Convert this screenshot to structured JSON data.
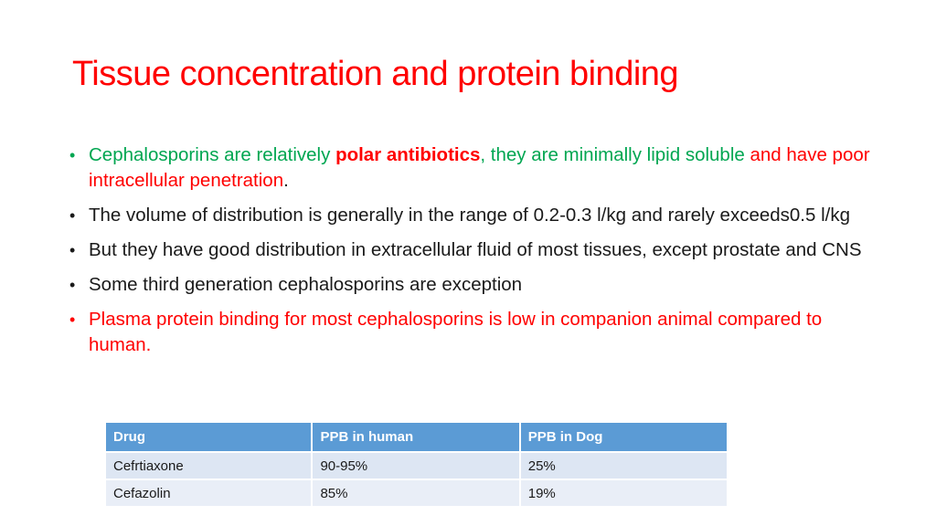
{
  "slide": {
    "title": "Tissue concentration and protein binding",
    "bullets": [
      {
        "parts": [
          {
            "text": "Cephalosporins are relatively ",
            "style": "green"
          },
          {
            "text": "polar antibiotics",
            "style": "red-bold"
          },
          {
            "text": ", they  are minimally lipid soluble ",
            "style": "green"
          },
          {
            "text": "and have poor intracellular penetration",
            "style": "red"
          },
          {
            "text": ".",
            "style": "dark"
          }
        ]
      },
      {
        "parts": [
          {
            "text": "The volume of distribution is generally in the range of 0.2-0.3 l/kg and rarely exceeds0.5 l/kg",
            "style": "dark"
          }
        ]
      },
      {
        "parts": [
          {
            "text": "But they have good distribution in extracellular fluid of most tissues, except prostate and CNS",
            "style": "dark"
          }
        ]
      },
      {
        "parts": [
          {
            "text": "Some third generation cephalosporins are exception",
            "style": "dark"
          }
        ]
      },
      {
        "parts": [
          {
            "text": "Plasma protein binding for most cephalosporins is low in companion animal compared to human.",
            "style": "red"
          }
        ],
        "bullet_color": "red"
      }
    ],
    "table": {
      "headers": [
        "Drug",
        "PPB in human",
        "PPB in Dog"
      ],
      "rows": [
        [
          "Cefrtiaxone",
          "90-95%",
          "25%"
        ],
        [
          "Cefazolin",
          "85%",
          "19%"
        ]
      ]
    },
    "colors": {
      "title": "#ff0000",
      "green_text": "#00a651",
      "red_text": "#ff0000",
      "table_header": "#5b9bd5",
      "table_row": "#dde6f3"
    }
  }
}
